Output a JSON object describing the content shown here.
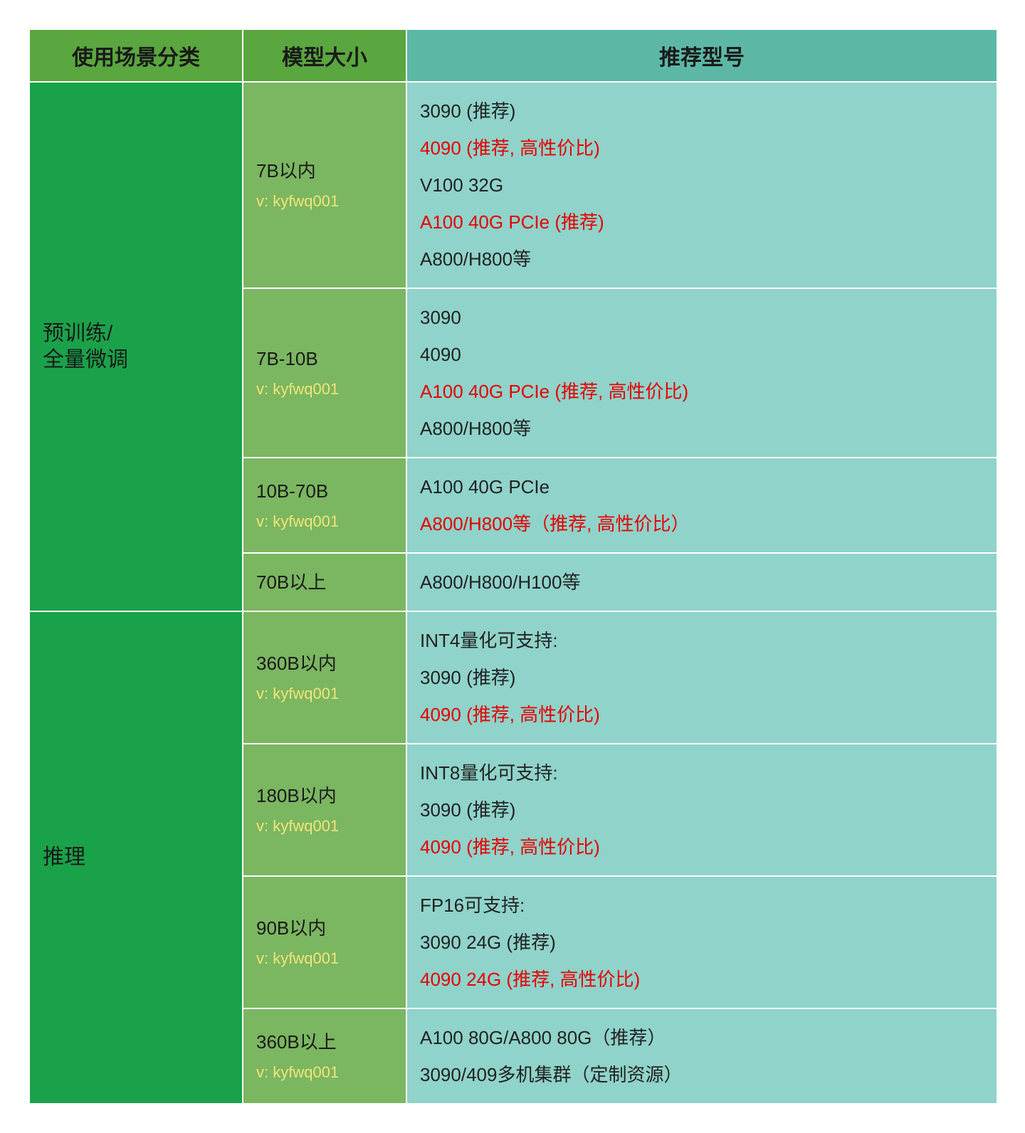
{
  "colors": {
    "header_green": "#5aa63f",
    "header_teal": "#5cb8a5",
    "scene_green": "#1aa24a",
    "size_green": "#7bb661",
    "rec_teal": "#8fd3ca",
    "border": "#ffffff",
    "text": "#1a1a1a",
    "red": "#e60000",
    "watermark": "#ffe97a"
  },
  "headers": {
    "scene": "使用场景分类",
    "size": "模型大小",
    "rec": "推荐型号"
  },
  "watermark": "v: kyfwq001",
  "sections": [
    {
      "scene": "预训练/\n全量微调",
      "rows": [
        {
          "size": "7B以内",
          "show_watermark": true,
          "recs": [
            {
              "text": "3090 (推荐)",
              "red": false
            },
            {
              "text": "4090 (推荐, 高性价比)",
              "red": true
            },
            {
              "text": "V100 32G",
              "red": false
            },
            {
              "text": "A100 40G PCIe (推荐)",
              "red": true
            },
            {
              "text": "A800/H800等",
              "red": false
            }
          ]
        },
        {
          "size": "7B-10B",
          "show_watermark": true,
          "recs": [
            {
              "text": "3090",
              "red": false
            },
            {
              "text": "4090",
              "red": false
            },
            {
              "text": "A100 40G PCIe (推荐, 高性价比)",
              "red": true
            },
            {
              "text": "A800/H800等",
              "red": false
            }
          ]
        },
        {
          "size": "10B-70B",
          "show_watermark": true,
          "recs": [
            {
              "text": "A100 40G PCIe",
              "red": false
            },
            {
              "text": "A800/H800等（推荐, 高性价比）",
              "red": true
            }
          ]
        },
        {
          "size": "70B以上",
          "show_watermark": false,
          "recs": [
            {
              "text": "A800/H800/H100等",
              "red": false
            }
          ]
        }
      ]
    },
    {
      "scene": "推理",
      "rows": [
        {
          "size": "360B以内",
          "show_watermark": true,
          "recs": [
            {
              "text": "INT4量化可支持:",
              "red": false
            },
            {
              "text": "3090 (推荐)",
              "red": false
            },
            {
              "text": "4090 (推荐, 高性价比)",
              "red": true
            }
          ]
        },
        {
          "size": "180B以内",
          "show_watermark": true,
          "recs": [
            {
              "text": "INT8量化可支持:",
              "red": false
            },
            {
              "text": "3090 (推荐)",
              "red": false
            },
            {
              "text": "4090 (推荐, 高性价比)",
              "red": true
            }
          ]
        },
        {
          "size": "90B以内",
          "show_watermark": true,
          "recs": [
            {
              "text": "FP16可支持:",
              "red": false
            },
            {
              "text": "3090 24G (推荐)",
              "red": false
            },
            {
              "text": "4090 24G (推荐, 高性价比)",
              "red": true
            }
          ]
        },
        {
          "size": "360B以上",
          "show_watermark": true,
          "recs": [
            {
              "text": "A100 80G/A800 80G（推荐）",
              "red": false
            },
            {
              "text": "3090/409多机集群（定制资源）",
              "red": false
            }
          ]
        }
      ]
    }
  ]
}
